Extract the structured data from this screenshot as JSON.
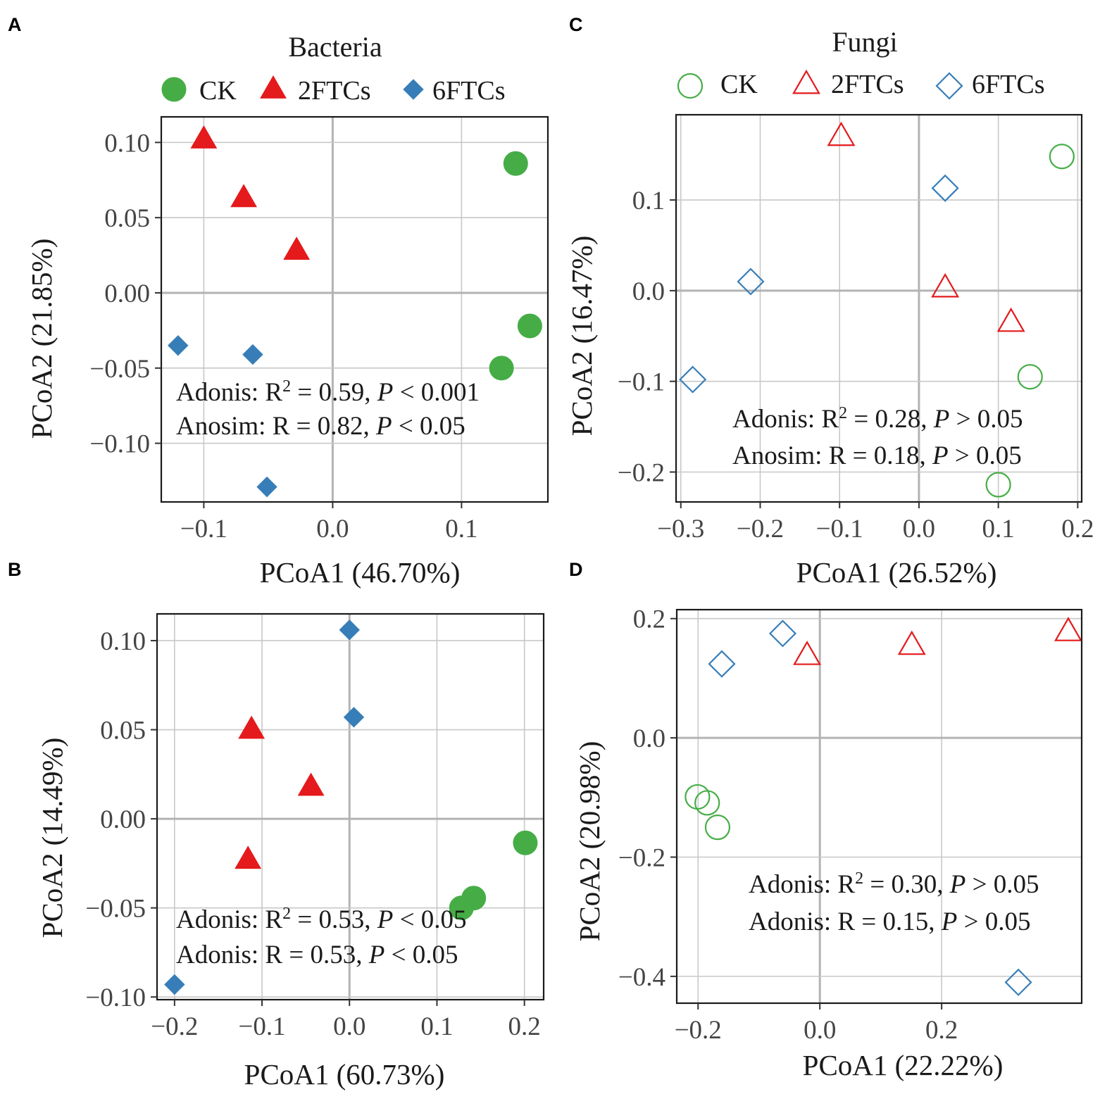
{
  "colors": {
    "CK": "#46ad46",
    "2FTCs": "#e41a1c",
    "6FTCs": "#377eb8",
    "grid": "#c8c8c8",
    "zero_line": "#b3b3b3"
  },
  "chart_data": [
    {
      "type": "scatter",
      "panel": "A",
      "title": "Bacteria",
      "filled": true,
      "legend_position": "top",
      "legend": [
        "CK",
        "2FTCs",
        "6FTCs"
      ],
      "xlabel": "PCoA1 (46.70%)",
      "ylabel": "PCoA2 (21.85%)",
      "xlim": [
        -0.133,
        0.167
      ],
      "ylim": [
        -0.139,
        0.117
      ],
      "xticks": [
        -0.1,
        0.0,
        0.1
      ],
      "xtick_labels": [
        "−0.1",
        "0.0",
        "0.1"
      ],
      "yticks": [
        -0.1,
        -0.05,
        0.0,
        0.05,
        0.1
      ],
      "ytick_labels": [
        "−0.10",
        "−0.05",
        "0.00",
        "0.05",
        "0.10"
      ],
      "series": [
        {
          "name": "CK",
          "marker": "circle",
          "points": [
            [
              0.142,
              0.086
            ],
            [
              0.153,
              -0.022
            ],
            [
              0.131,
              -0.05
            ]
          ]
        },
        {
          "name": "2FTCs",
          "marker": "triangle",
          "points": [
            [
              -0.1,
              0.102
            ],
            [
              -0.069,
              0.063
            ],
            [
              -0.028,
              0.028
            ]
          ]
        },
        {
          "name": "6FTCs",
          "marker": "diamond",
          "points": [
            [
              -0.12,
              -0.035
            ],
            [
              -0.062,
              -0.041
            ],
            [
              -0.051,
              -0.129
            ]
          ]
        }
      ],
      "annotations": [
        {
          "line": [
            "Adonis: R",
            "2",
            " = 0.59, ",
            "P",
            " < 0.001"
          ]
        },
        {
          "line": [
            "Anosim: R = 0.82, ",
            "",
            "",
            "P",
            " < 0.05"
          ]
        }
      ]
    },
    {
      "type": "scatter",
      "panel": "B",
      "title": "",
      "filled": true,
      "legend": [],
      "xlabel": "PCoA1 (60.73%)",
      "ylabel": "PCoA2 (14.49%)",
      "xlim": [
        -0.22,
        0.222
      ],
      "ylim": [
        -0.1015,
        0.115
      ],
      "xticks": [
        -0.2,
        -0.1,
        0.0,
        0.1,
        0.2
      ],
      "xtick_labels": [
        "−0.2",
        "−0.1",
        "0.0",
        "0.1",
        "0.2"
      ],
      "yticks": [
        -0.1,
        -0.05,
        0.0,
        0.05,
        0.1
      ],
      "ytick_labels": [
        "−0.10",
        "−0.05",
        "0.00",
        "0.05",
        "0.10"
      ],
      "series": [
        {
          "name": "CK",
          "marker": "circle",
          "points": [
            [
              0.201,
              -0.0135
            ],
            [
              0.142,
              -0.0445
            ],
            [
              0.128,
              -0.05
            ]
          ]
        },
        {
          "name": "2FTCs",
          "marker": "triangle",
          "points": [
            [
              -0.112,
              0.05
            ],
            [
              -0.044,
              0.018
            ],
            [
              -0.116,
              -0.023
            ]
          ]
        },
        {
          "name": "6FTCs",
          "marker": "diamond",
          "points": [
            [
              0.0,
              0.106
            ],
            [
              0.005,
              0.057
            ],
            [
              -0.2,
              -0.093
            ]
          ]
        }
      ],
      "annotations": [
        {
          "line": [
            "Adonis: R",
            "2",
            " = 0.53, ",
            "P",
            " < 0.05"
          ]
        },
        {
          "line": [
            "Adonis: R  = 0.53, ",
            "",
            "",
            "P",
            " < 0.05"
          ]
        }
      ]
    },
    {
      "type": "scatter",
      "panel": "C",
      "title": "Fungi",
      "filled": false,
      "legend_position": "top",
      "legend": [
        "CK",
        "2FTCs",
        "6FTCs"
      ],
      "xlabel": "PCoA1 (26.52%)",
      "ylabel": "PCoA2 (16.47%)",
      "xlim": [
        -0.306,
        0.205
      ],
      "ylim": [
        -0.233,
        0.194
      ],
      "xticks": [
        -0.3,
        -0.2,
        -0.1,
        0.0,
        0.1,
        0.2
      ],
      "xtick_labels": [
        "−0.3",
        "−0.2",
        "−0.1",
        "0.0",
        "0.1",
        "0.2"
      ],
      "yticks": [
        -0.2,
        -0.1,
        0.0,
        0.1
      ],
      "ytick_labels": [
        "−0.2",
        "−0.1",
        "0.0",
        "0.1"
      ],
      "series": [
        {
          "name": "CK",
          "marker": "circle",
          "points": [
            [
              0.18,
              0.148
            ],
            [
              0.14,
              -0.095
            ],
            [
              0.1,
              -0.214
            ]
          ]
        },
        {
          "name": "2FTCs",
          "marker": "triangle",
          "points": [
            [
              -0.098,
              0.17
            ],
            [
              0.033,
              0.003
            ],
            [
              0.116,
              -0.035
            ]
          ]
        },
        {
          "name": "6FTCs",
          "marker": "diamond",
          "points": [
            [
              0.033,
              0.113
            ],
            [
              -0.212,
              0.01
            ],
            [
              -0.285,
              -0.098
            ]
          ]
        }
      ],
      "annotations": [
        {
          "line": [
            "Adonis: R",
            "2",
            " = 0.28, ",
            "P",
            " > 0.05"
          ]
        },
        {
          "line": [
            "Anosim: R = 0.18, ",
            "",
            "",
            "P",
            " > 0.05"
          ]
        }
      ]
    },
    {
      "type": "scatter",
      "panel": "D",
      "title": "",
      "filled": false,
      "legend": [],
      "xlabel": "PCoA1 (22.22%)",
      "ylabel": "PCoA2 (20.98%)",
      "xlim": [
        -0.235,
        0.43
      ],
      "ylim": [
        -0.445,
        0.215
      ],
      "xticks": [
        -0.2,
        0.0,
        0.2
      ],
      "xtick_labels": [
        "−0.2",
        "0.0",
        "0.2"
      ],
      "yticks": [
        -0.4,
        -0.2,
        0.0,
        0.2
      ],
      "ytick_labels": [
        "−0.4",
        "−0.2",
        "0.0",
        "0.2"
      ],
      "series": [
        {
          "name": "CK",
          "marker": "circle",
          "points": [
            [
              -0.201,
              -0.099
            ],
            [
              -0.185,
              -0.109
            ],
            [
              -0.168,
              -0.15
            ]
          ]
        },
        {
          "name": "2FTCs",
          "marker": "triangle",
          "points": [
            [
              -0.021,
              0.138
            ],
            [
              0.151,
              0.155
            ],
            [
              0.408,
              0.178
            ]
          ]
        },
        {
          "name": "6FTCs",
          "marker": "diamond",
          "points": [
            [
              -0.061,
              0.175
            ],
            [
              -0.161,
              0.124
            ],
            [
              0.326,
              -0.41
            ]
          ]
        }
      ],
      "annotations": [
        {
          "line": [
            "Adonis: R",
            "2",
            " = 0.30, ",
            "P",
            " > 0.05"
          ]
        },
        {
          "line": [
            "Adonis: R  = 0.15, ",
            "",
            "",
            "P",
            " > 0.05"
          ]
        }
      ]
    }
  ]
}
